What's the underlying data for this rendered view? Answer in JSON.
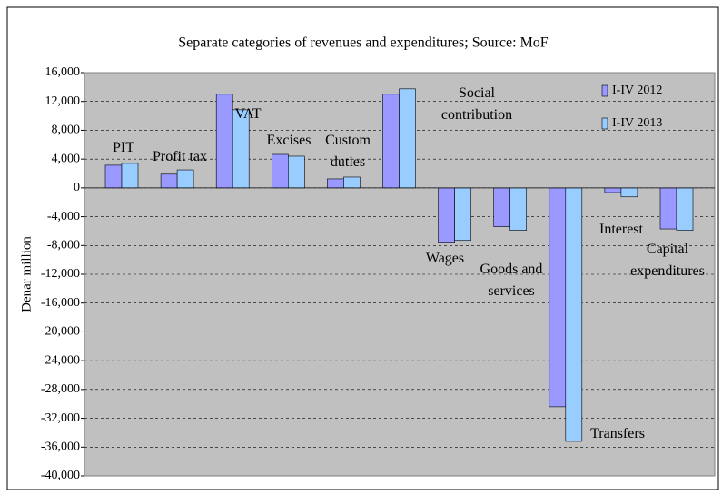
{
  "chart_data": {
    "type": "bar",
    "title": "Separate categories of revenues and expenditures; Source: MoF",
    "y_label": "Denar million",
    "categories": [
      "PIT",
      "Profit tax",
      "VAT",
      "Excises",
      "Custom duties",
      "Social contribution",
      "Wages",
      "Goods and services",
      "Transfers",
      "Interest",
      "Capital expenditures"
    ],
    "series": [
      {
        "name": "I-IV 2012",
        "color": "#9999ff",
        "values": [
          3150,
          1900,
          13000,
          4650,
          1250,
          13000,
          -7550,
          -5400,
          -30400,
          -650,
          -5700
        ]
      },
      {
        "name": "I-IV 2013",
        "color": "#99ccff",
        "values": [
          3400,
          2500,
          10850,
          4400,
          1500,
          13750,
          -7300,
          -5900,
          -35200,
          -1250,
          -5900
        ]
      }
    ],
    "ylim": [
      -40000,
      16000
    ],
    "yticks": [
      {
        "value": 16000,
        "label": "16,000"
      },
      {
        "value": 12000,
        "label": "12,000"
      },
      {
        "value": 8000,
        "label": "8,000"
      },
      {
        "value": 4000,
        "label": "4,000"
      },
      0,
      {
        "value": -4000,
        "label": "-4,000"
      },
      {
        "value": -8000,
        "label": "-8,000"
      },
      {
        "value": -12000,
        "label": "-12,000"
      },
      {
        "value": -16000,
        "label": "-16,000"
      },
      {
        "value": -20000,
        "label": "-20,000"
      },
      {
        "value": -24000,
        "label": "-24,000"
      },
      {
        "value": -28000,
        "label": "-28,000"
      },
      {
        "value": -32000,
        "label": "-32,000"
      },
      {
        "value": -36000,
        "label": "-36,000"
      },
      {
        "value": -40000,
        "label": "-40,000"
      }
    ],
    "grid": true,
    "legend": "top-right"
  }
}
